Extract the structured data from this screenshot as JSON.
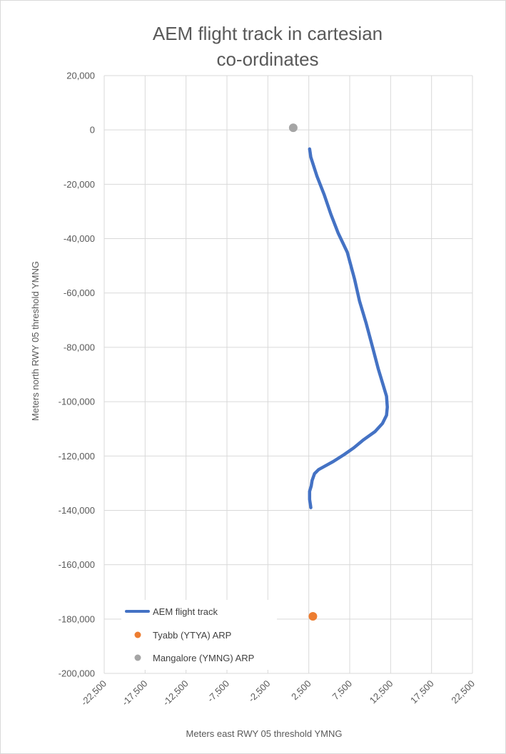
{
  "chart_data": {
    "type": "scatter",
    "title_lines": [
      "AEM flight track in cartesian",
      "co-ordinates"
    ],
    "xlabel": "Meters east RWY 05 threshold  YMNG",
    "ylabel": "Meters north RWY 05 threshold  YMNG",
    "xlim": [
      -22500,
      22500
    ],
    "ylim": [
      -200000,
      20000
    ],
    "x_ticks": [
      -22500,
      -17500,
      -12500,
      -7500,
      -2500,
      2500,
      7500,
      12500,
      17500,
      22500
    ],
    "x_tick_labels": [
      "-22,500",
      "-17,500",
      "-12,500",
      "-7,500",
      "-2,500",
      "2,500",
      "7,500",
      "12,500",
      "17,500",
      "22,500"
    ],
    "y_ticks": [
      20000,
      0,
      -20000,
      -40000,
      -60000,
      -80000,
      -100000,
      -120000,
      -140000,
      -160000,
      -180000,
      -200000
    ],
    "y_tick_labels": [
      "20,000",
      "0",
      "-20,000",
      "-40,000",
      "-60,000",
      "-80,000",
      "-100,000",
      "-120,000",
      "-140,000",
      "-160,000",
      "-180,000",
      "-200,000"
    ],
    "grid": true,
    "legend_position": "bottom-left",
    "series": [
      {
        "name": "AEM flight track",
        "kind": "line",
        "color": "#4472c4",
        "x": [
          2600,
          2650,
          2750,
          3500,
          4400,
          5200,
          6100,
          7200,
          8100,
          8700,
          9500,
          10300,
          11000,
          11600,
          12000,
          12100,
          12000,
          11500,
          10600,
          9200,
          8000,
          6800,
          5500,
          3700,
          3200,
          2900,
          2800,
          2600,
          2600,
          2700,
          2750
        ],
        "y": [
          -7000,
          -8000,
          -10000,
          -17000,
          -24000,
          -31000,
          -38000,
          -45000,
          -55000,
          -63000,
          -71000,
          -80000,
          -88000,
          -94000,
          -98000,
          -102000,
          -105000,
          -108000,
          -111000,
          -114000,
          -117000,
          -119500,
          -122000,
          -125000,
          -126500,
          -129000,
          -131000,
          -133000,
          -136000,
          -138000,
          -139000
        ]
      },
      {
        "name": "Tyabb (YTYA) ARP",
        "kind": "point",
        "color": "#ed7d31",
        "x": [
          3000
        ],
        "y": [
          -179000
        ]
      },
      {
        "name": "Mangalore (YMNG) ARP",
        "kind": "point",
        "color": "#a5a5a5",
        "x": [
          600
        ],
        "y": [
          800
        ]
      }
    ]
  }
}
